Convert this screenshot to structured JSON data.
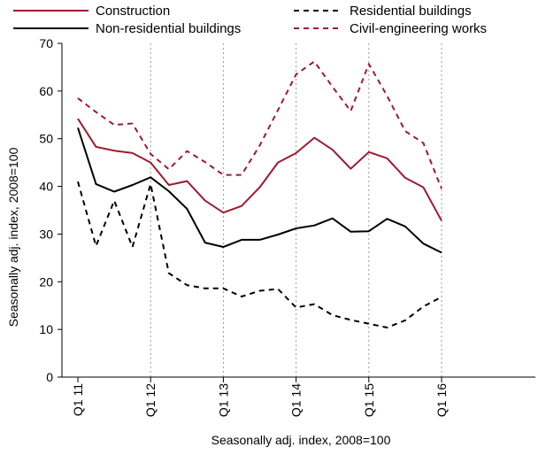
{
  "chart_data": {
    "type": "line",
    "xlabel": "Seasonally adj. index, 2008=100",
    "ylabel": "Seasonally adj. index, 2008=100",
    "ylim": [
      0,
      70
    ],
    "yticks": [
      0,
      10,
      20,
      30,
      40,
      50,
      60,
      70
    ],
    "x_tick_labels": [
      "Q1 11",
      "Q1 12",
      "Q1 13",
      "Q1 14",
      "Q1 15",
      "Q1 16"
    ],
    "x": [
      "Q1 11",
      "Q2 11",
      "Q3 11",
      "Q4 11",
      "Q1 12",
      "Q2 12",
      "Q3 12",
      "Q4 12",
      "Q1 13",
      "Q2 13",
      "Q3 13",
      "Q4 13",
      "Q1 14",
      "Q2 14",
      "Q3 14",
      "Q4 14",
      "Q1 15",
      "Q2 15",
      "Q3 15",
      "Q4 15",
      "Q1 16"
    ],
    "grid": "vertical dotted at year starts",
    "legend_position": "top",
    "series": [
      {
        "name": "Construction",
        "color": "#9b1b30",
        "style": "solid",
        "values": [
          54.2,
          48.3,
          47.5,
          47.0,
          45.0,
          40.3,
          41.1,
          37.0,
          34.5,
          35.9,
          39.8,
          45.0,
          47.0,
          50.2,
          47.7,
          43.7,
          47.2,
          45.9,
          41.8,
          39.8,
          32.8
        ]
      },
      {
        "name": "Residential buildings",
        "color": "#000000",
        "style": "dashed",
        "values": [
          41.0,
          27.5,
          37.0,
          27.3,
          40.5,
          21.8,
          19.3,
          18.6,
          18.6,
          16.9,
          18.1,
          18.5,
          14.6,
          15.3,
          13.0,
          12.0,
          11.2,
          10.4,
          11.9,
          14.8,
          16.8
        ]
      },
      {
        "name": "Non-residential buildings",
        "color": "#000000",
        "style": "solid",
        "values": [
          52.3,
          40.5,
          38.9,
          40.3,
          41.9,
          39.0,
          35.3,
          28.2,
          27.3,
          28.8,
          28.8,
          29.9,
          31.2,
          31.8,
          33.3,
          30.5,
          30.6,
          33.2,
          31.6,
          28.0,
          26.1
        ]
      },
      {
        "name": "Civil-engineering works",
        "color": "#9b1b30",
        "style": "dashed",
        "values": [
          58.5,
          55.6,
          52.9,
          53.2,
          46.8,
          43.6,
          47.4,
          45.1,
          42.4,
          42.4,
          48.6,
          56.0,
          63.5,
          66.2,
          60.9,
          55.8,
          65.7,
          59.0,
          51.6,
          49.1,
          39.5
        ]
      }
    ]
  }
}
